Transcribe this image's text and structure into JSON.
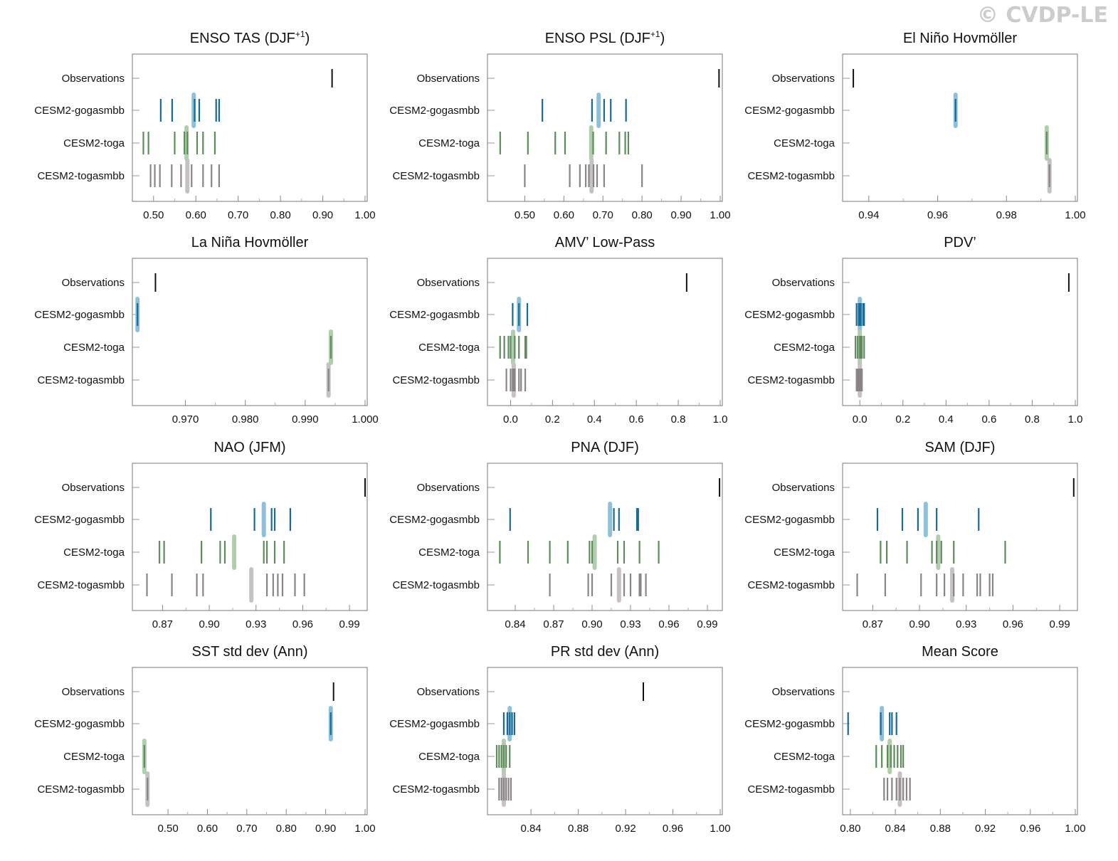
{
  "copyright": "© CVDP-LE",
  "row_labels": [
    "Observations",
    "CESM2-gogasmbb",
    "CESM2-toga",
    "CESM2-togasmbb"
  ],
  "colors": {
    "Observations": "#111111",
    "CESM2-gogasmbb": "#1a6a96",
    "CESM2-toga": "#5e8c5b",
    "CESM2-togasmbb": "#8b8486",
    "mean_gogasmbb": "#8fc0da",
    "mean_toga": "#b1ccae",
    "mean_togasmbb": "#c6c2c3"
  },
  "chart_data": [
    {
      "type": "scatter",
      "title": "ENSO TAS (DJF",
      "title_sup": "+1",
      "title_end": ")",
      "xlim": [
        0.455,
        1.0
      ],
      "ticks": [
        0.5,
        0.6,
        0.7,
        0.8,
        0.9,
        1.0
      ],
      "tick_labels": [
        "0.50",
        "0.60",
        "0.70",
        "0.80",
        "0.90",
        "1.00"
      ],
      "series": [
        {
          "name": "Observations",
          "values": [
            0.922
          ]
        },
        {
          "name": "CESM2-gogasmbb",
          "values": [
            0.517,
            0.544,
            0.597,
            0.608,
            0.648,
            0.655
          ],
          "mean": 0.595
        },
        {
          "name": "CESM2-toga",
          "values": [
            0.476,
            0.488,
            0.55,
            0.573,
            0.58,
            0.603,
            0.617,
            0.645
          ],
          "mean": 0.578
        },
        {
          "name": "CESM2-togasmbb",
          "values": [
            0.493,
            0.503,
            0.515,
            0.543,
            0.565,
            0.59,
            0.617,
            0.637,
            0.655
          ],
          "mean": 0.58
        }
      ]
    },
    {
      "type": "scatter",
      "title": "ENSO PSL (DJF",
      "title_sup": "+1",
      "title_end": ")",
      "xlim": [
        0.41,
        1.0
      ],
      "ticks": [
        0.5,
        0.6,
        0.7,
        0.8,
        0.9,
        1.0
      ],
      "tick_labels": [
        "0.50",
        "0.60",
        "0.70",
        "0.80",
        "0.90",
        "1.00"
      ],
      "series": [
        {
          "name": "Observations",
          "values": [
            0.997
          ]
        },
        {
          "name": "CESM2-gogasmbb",
          "values": [
            0.545,
            0.672,
            0.703,
            0.72,
            0.759
          ],
          "mean": 0.689
        },
        {
          "name": "CESM2-toga",
          "values": [
            0.437,
            0.508,
            0.578,
            0.603,
            0.675,
            0.708,
            0.742,
            0.757,
            0.765
          ],
          "mean": 0.67
        },
        {
          "name": "CESM2-togasmbb",
          "values": [
            0.5,
            0.615,
            0.641,
            0.656,
            0.664,
            0.676,
            0.685,
            0.703,
            0.8
          ],
          "mean": 0.671
        }
      ]
    },
    {
      "type": "scatter",
      "title": "El Niño Hovmöller",
      "xlim": [
        0.933,
        1.0
      ],
      "ticks": [
        0.94,
        0.96,
        0.98,
        1.0
      ],
      "tick_labels": [
        "0.94",
        "0.96",
        "0.98",
        "1.00"
      ],
      "series": [
        {
          "name": "Observations",
          "values": [
            0.9355
          ]
        },
        {
          "name": "CESM2-gogasmbb",
          "values": [
            0.9652
          ],
          "mean": 0.9652
        },
        {
          "name": "CESM2-toga",
          "values": [
            0.9917
          ],
          "mean": 0.9917
        },
        {
          "name": "CESM2-togasmbb",
          "values": [
            0.9925
          ],
          "mean": 0.9925
        }
      ]
    },
    {
      "type": "scatter",
      "title": "La Niña Hovmöller",
      "xlim": [
        0.9615,
        1.0
      ],
      "ticks": [
        0.97,
        0.98,
        0.99,
        1.0
      ],
      "tick_labels": [
        "0.970",
        "0.980",
        "0.990",
        "1.000"
      ],
      "series": [
        {
          "name": "Observations",
          "values": [
            0.965
          ]
        },
        {
          "name": "CESM2-gogasmbb",
          "values": [
            0.962
          ],
          "mean": 0.962
        },
        {
          "name": "CESM2-toga",
          "values": [
            0.9943
          ],
          "mean": 0.9943
        },
        {
          "name": "CESM2-togasmbb",
          "values": [
            0.9939
          ],
          "mean": 0.9939
        }
      ]
    },
    {
      "type": "scatter",
      "title": "AMV’ Low-Pass",
      "xlim": [
        -0.1,
        1.0
      ],
      "ticks": [
        0.0,
        0.2,
        0.4,
        0.6,
        0.8,
        1.0
      ],
      "tick_labels": [
        "0.0",
        "0.2",
        "0.4",
        "0.6",
        "0.8",
        "1.0"
      ],
      "series": [
        {
          "name": "Observations",
          "values": [
            0.84
          ]
        },
        {
          "name": "CESM2-gogasmbb",
          "values": [
            0.01,
            0.04,
            0.08
          ],
          "mean": 0.04
        },
        {
          "name": "CESM2-toga",
          "values": [
            -0.05,
            -0.03,
            -0.01,
            0.0,
            0.02,
            0.04,
            0.07,
            0.075
          ],
          "mean": 0.012
        },
        {
          "name": "CESM2-togasmbb",
          "values": [
            -0.02,
            0.0,
            0.01,
            0.015,
            0.02,
            0.04,
            0.05,
            0.07
          ],
          "mean": 0.015
        }
      ]
    },
    {
      "type": "scatter",
      "title": "PDV’",
      "xlim": [
        -0.07,
        1.0
      ],
      "ticks": [
        0.0,
        0.2,
        0.4,
        0.6,
        0.8,
        1.0
      ],
      "tick_labels": [
        "0.0",
        "0.2",
        "0.4",
        "0.6",
        "0.8",
        "1.0"
      ],
      "series": [
        {
          "name": "Observations",
          "values": [
            0.97
          ]
        },
        {
          "name": "CESM2-gogasmbb",
          "values": [
            -0.015,
            -0.005,
            0.0,
            0.005,
            0.015,
            0.02
          ],
          "mean": 0.0
        },
        {
          "name": "CESM2-toga",
          "values": [
            -0.02,
            -0.01,
            0.0,
            0.005,
            0.01,
            0.02
          ],
          "mean": 0.0
        },
        {
          "name": "CESM2-togasmbb",
          "values": [
            -0.015,
            -0.01,
            -0.005,
            0.0,
            0.005,
            0.01
          ],
          "mean": 0.0
        }
      ]
    },
    {
      "type": "scatter",
      "title": "NAO (JFM)",
      "xlim": [
        0.852,
        1.0
      ],
      "ticks": [
        0.87,
        0.9,
        0.93,
        0.96,
        0.99
      ],
      "tick_labels": [
        "0.87",
        "0.90",
        "0.93",
        "0.96",
        "0.99"
      ],
      "series": [
        {
          "name": "Observations",
          "values": [
            1.0
          ]
        },
        {
          "name": "CESM2-gogasmbb",
          "values": [
            0.901,
            0.929,
            0.94,
            0.942,
            0.952
          ],
          "mean": 0.935
        },
        {
          "name": "CESM2-toga",
          "values": [
            0.868,
            0.871,
            0.895,
            0.907,
            0.91,
            0.935,
            0.937,
            0.942,
            0.948
          ],
          "mean": 0.916
        },
        {
          "name": "CESM2-togasmbb",
          "values": [
            0.86,
            0.876,
            0.892,
            0.896,
            0.937,
            0.941,
            0.944,
            0.947,
            0.955,
            0.961
          ],
          "mean": 0.927
        }
      ]
    },
    {
      "type": "scatter",
      "title": "PNA (DJF)",
      "xlim": [
        0.82,
        1.0
      ],
      "ticks": [
        0.84,
        0.87,
        0.9,
        0.93,
        0.96,
        0.99
      ],
      "tick_labels": [
        "0.84",
        "0.87",
        "0.90",
        "0.93",
        "0.96",
        "0.99"
      ],
      "series": [
        {
          "name": "Observations",
          "values": [
            0.9995
          ]
        },
        {
          "name": "CESM2-gogasmbb",
          "values": [
            0.836,
            0.917,
            0.921,
            0.935,
            0.936
          ],
          "mean": 0.914
        },
        {
          "name": "CESM2-toga",
          "values": [
            0.828,
            0.85,
            0.867,
            0.881,
            0.898,
            0.9,
            0.92,
            0.925,
            0.937,
            0.952
          ],
          "mean": 0.902
        },
        {
          "name": "CESM2-togasmbb",
          "values": [
            0.867,
            0.897,
            0.9,
            0.915,
            0.925,
            0.93,
            0.937,
            0.938,
            0.942
          ],
          "mean": 0.921
        }
      ]
    },
    {
      "type": "scatter",
      "title": "SAM (DJF)",
      "xlim": [
        0.852,
        1.0
      ],
      "ticks": [
        0.87,
        0.9,
        0.93,
        0.96,
        0.99
      ],
      "tick_labels": [
        "0.87",
        "0.90",
        "0.93",
        "0.96",
        "0.99"
      ],
      "series": [
        {
          "name": "Observations",
          "values": [
            0.999
          ]
        },
        {
          "name": "CESM2-gogasmbb",
          "values": [
            0.873,
            0.889,
            0.899,
            0.911,
            0.938
          ],
          "mean": 0.904
        },
        {
          "name": "CESM2-toga",
          "values": [
            0.875,
            0.879,
            0.892,
            0.908,
            0.911,
            0.914,
            0.922,
            0.955
          ],
          "mean": 0.912
        },
        {
          "name": "CESM2-togasmbb",
          "values": [
            0.86,
            0.878,
            0.901,
            0.911,
            0.916,
            0.922,
            0.928,
            0.937,
            0.939,
            0.945,
            0.947
          ],
          "mean": 0.921
        }
      ]
    },
    {
      "type": "scatter",
      "title": "SST std dev (Ann)",
      "xlim": [
        0.415,
        1.0
      ],
      "ticks": [
        0.5,
        0.6,
        0.7,
        0.8,
        0.9,
        1.0
      ],
      "tick_labels": [
        "0.50",
        "0.60",
        "0.70",
        "0.80",
        "0.90",
        "1.00"
      ],
      "series": [
        {
          "name": "Observations",
          "values": [
            0.92
          ]
        },
        {
          "name": "CESM2-gogasmbb",
          "values": [
            0.913
          ],
          "mean": 0.913
        },
        {
          "name": "CESM2-toga",
          "values": [
            0.44
          ],
          "mean": 0.44
        },
        {
          "name": "CESM2-togasmbb",
          "values": [
            0.448
          ],
          "mean": 0.448
        }
      ]
    },
    {
      "type": "scatter",
      "title": "PR std dev (Ann)",
      "xlim": [
        0.805,
        1.0
      ],
      "ticks": [
        0.84,
        0.88,
        0.92,
        0.96,
        1.0
      ],
      "tick_labels": [
        "0.84",
        "0.88",
        "0.92",
        "0.96",
        "1.00"
      ],
      "series": [
        {
          "name": "Observations",
          "values": [
            0.935
          ]
        },
        {
          "name": "CESM2-gogasmbb",
          "values": [
            0.817,
            0.82,
            0.822,
            0.824,
            0.826
          ],
          "mean": 0.822
        },
        {
          "name": "CESM2-toga",
          "values": [
            0.811,
            0.813,
            0.815,
            0.817,
            0.819,
            0.822
          ],
          "mean": 0.817
        },
        {
          "name": "CESM2-togasmbb",
          "values": [
            0.813,
            0.815,
            0.817,
            0.819,
            0.821,
            0.823
          ],
          "mean": 0.817
        }
      ]
    },
    {
      "type": "scatter",
      "title": "Mean Score",
      "xlim": [
        0.795,
        1.0
      ],
      "ticks": [
        0.8,
        0.84,
        0.88,
        0.92,
        0.96,
        1.0
      ],
      "tick_labels": [
        "0.80",
        "0.84",
        "0.88",
        "0.92",
        "0.96",
        "1.00"
      ],
      "series": [
        {
          "name": "Observations",
          "values": []
        },
        {
          "name": "CESM2-gogasmbb",
          "values": [
            0.798,
            0.827,
            0.835,
            0.837,
            0.841
          ],
          "mean": 0.828
        },
        {
          "name": "CESM2-toga",
          "values": [
            0.823,
            0.828,
            0.833,
            0.836,
            0.839,
            0.842,
            0.845,
            0.847
          ],
          "mean": 0.835
        },
        {
          "name": "CESM2-togasmbb",
          "values": [
            0.83,
            0.833,
            0.837,
            0.841,
            0.844,
            0.847,
            0.85,
            0.853
          ],
          "mean": 0.844
        }
      ]
    }
  ]
}
